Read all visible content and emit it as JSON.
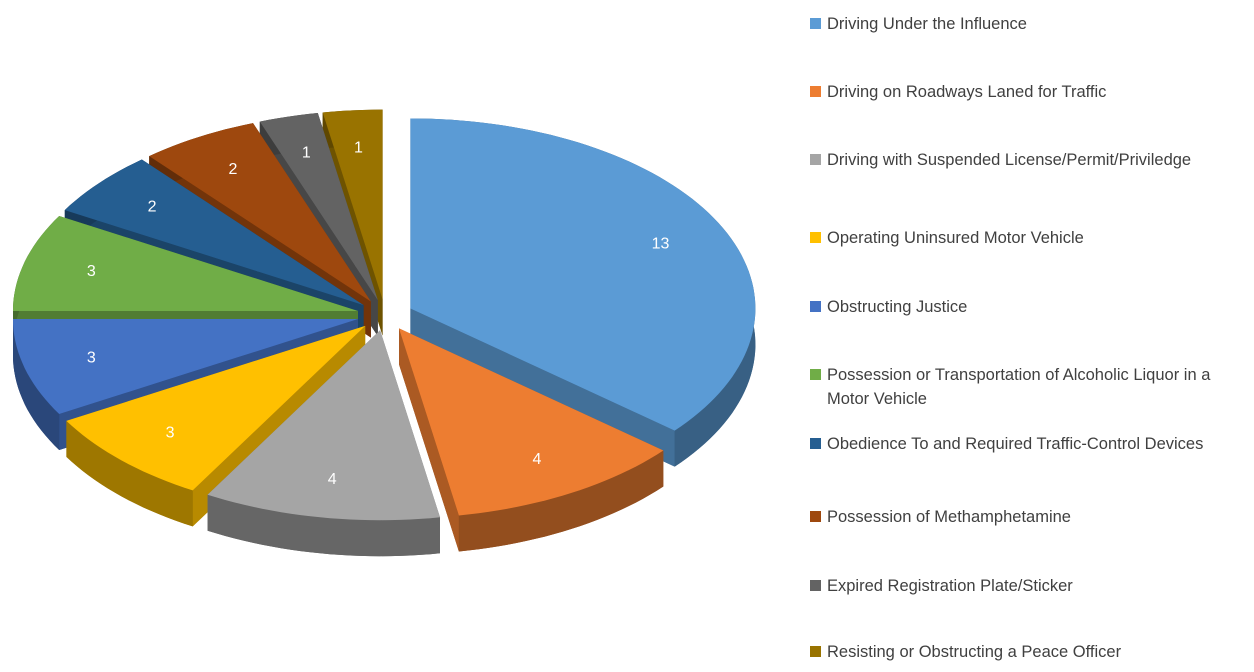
{
  "chart_data": {
    "type": "pie",
    "is_3d": true,
    "exploded": true,
    "categories": [
      "Driving Under the Influence",
      "Driving on Roadways Laned for Traffic",
      "Driving with Suspended License/Permit/Priviledge",
      "Operating Uninsured Motor Vehicle",
      "Obstructing Justice",
      "Possession or Transportation of Alcoholic Liquor in a Motor Vehicle",
      "Obedience To and Required Traffic-Control Devices",
      "Possession of Methamphetamine",
      "Expired Registration Plate/Sticker",
      "Resisting or Obstructing a Peace Officer"
    ],
    "values": [
      13,
      4,
      4,
      3,
      3,
      3,
      2,
      2,
      1,
      1
    ],
    "colors": [
      "#5b9bd5",
      "#ed7d31",
      "#a5a5a5",
      "#ffc000",
      "#4472c4",
      "#70ad47",
      "#255e91",
      "#9e480e",
      "#636363",
      "#997300"
    ],
    "legend": "right"
  }
}
